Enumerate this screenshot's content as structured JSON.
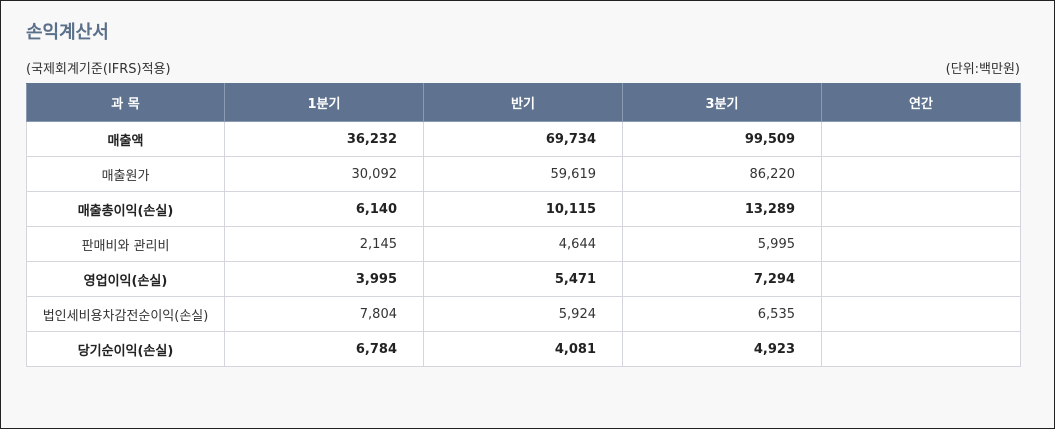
{
  "title": "손익계산서",
  "standard_note": "(국제회계기준(IFRS)적용)",
  "unit_note": "(단위:백만원)",
  "table": {
    "headers": [
      "과 목",
      "1분기",
      "반기",
      "3분기",
      "연간"
    ],
    "rows": [
      {
        "item": "매출액",
        "bold": true,
        "values": [
          "36,232",
          "69,734",
          "99,509",
          ""
        ]
      },
      {
        "item": "매출원가",
        "bold": false,
        "values": [
          "30,092",
          "59,619",
          "86,220",
          ""
        ]
      },
      {
        "item": "매출총이익(손실)",
        "bold": true,
        "values": [
          "6,140",
          "10,115",
          "13,289",
          ""
        ]
      },
      {
        "item": "판매비와 관리비",
        "bold": false,
        "values": [
          "2,145",
          "4,644",
          "5,995",
          ""
        ]
      },
      {
        "item": "영업이익(손실)",
        "bold": true,
        "values": [
          "3,995",
          "5,471",
          "7,294",
          ""
        ]
      },
      {
        "item": "법인세비용차감전순이익(손실)",
        "bold": false,
        "values": [
          "7,804",
          "5,924",
          "6,535",
          ""
        ]
      },
      {
        "item": "당기순이익(손실)",
        "bold": true,
        "values": [
          "6,784",
          "4,081",
          "4,923",
          ""
        ]
      }
    ]
  },
  "colors": {
    "header_bg": "#5f7390",
    "title": "#5a6f8a"
  }
}
